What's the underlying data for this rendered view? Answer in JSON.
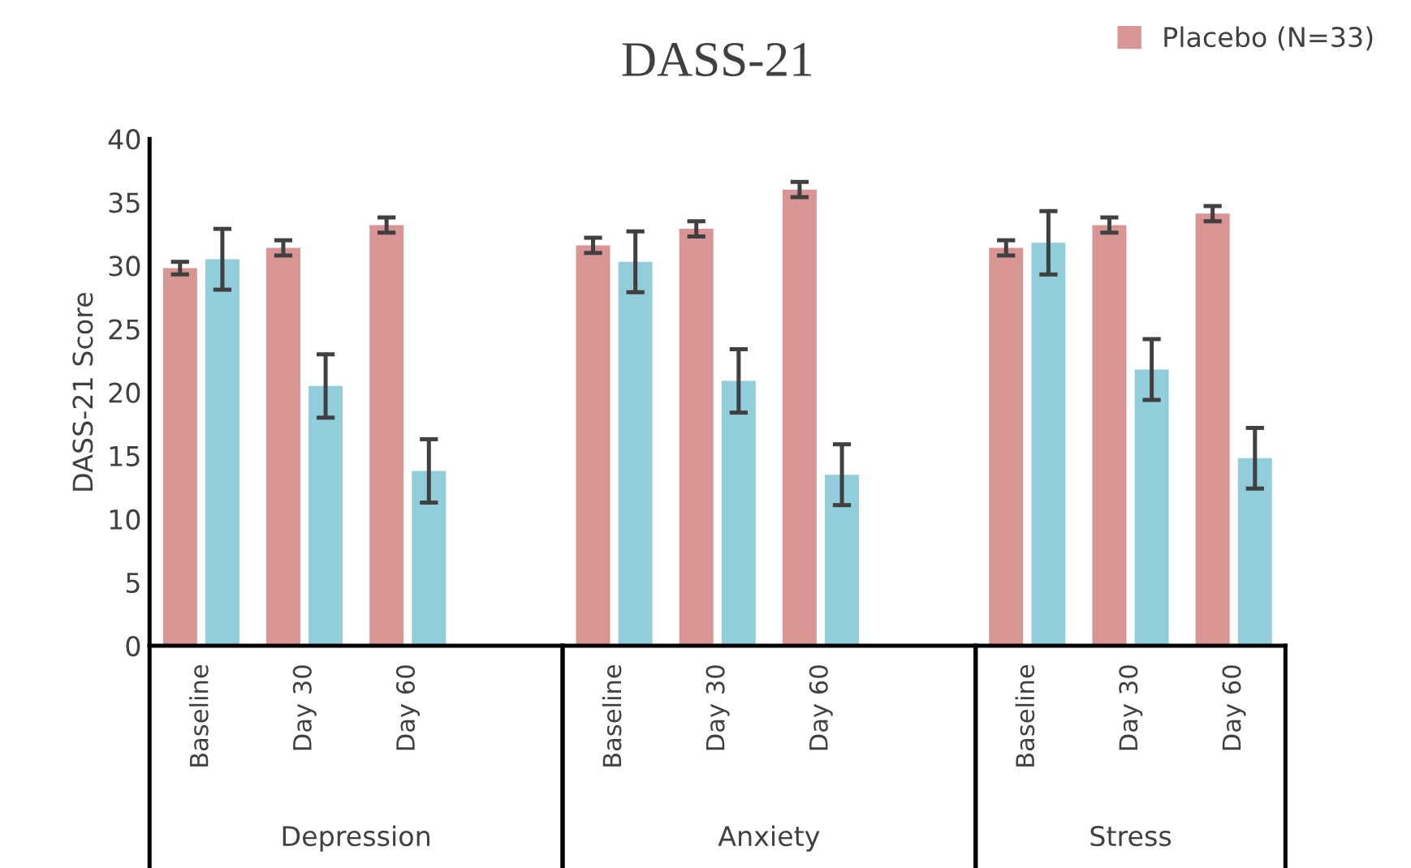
{
  "chart_data": {
    "type": "bar",
    "title": "DASS-21",
    "ylabel": "DASS-21 Score",
    "categories": [
      "Baseline",
      "Day 30",
      "Day 60",
      null,
      "Baseline",
      "Day 30",
      "Day 60",
      null,
      "Baseline",
      "Day 30",
      "Day 60"
    ],
    "series": [
      {
        "name": "Placebo (N=33)",
        "color": "#d99594",
        "values": [
          29.8,
          31.4,
          33.2,
          null,
          31.6,
          32.9,
          36.0,
          null,
          31.4,
          33.2,
          34.1
        ],
        "errors": [
          0.5,
          0.6,
          0.6,
          null,
          0.6,
          0.6,
          0.6,
          null,
          0.6,
          0.6,
          0.6
        ]
      },
      {
        "color": "#92cddc",
        "values": [
          30.5,
          20.5,
          13.8,
          null,
          30.3,
          20.9,
          13.5,
          null,
          31.8,
          21.8,
          14.8
        ],
        "errors": [
          2.4,
          2.5,
          2.5,
          null,
          2.4,
          2.5,
          2.4,
          null,
          2.5,
          2.4,
          2.4
        ]
      }
    ],
    "annotations": [
      "Depression",
      "Anxiety",
      "Stress"
    ],
    "ylim": [
      0,
      40
    ],
    "yticks": [
      0,
      5,
      10,
      15,
      20,
      25,
      30,
      35,
      40
    ],
    "grid": false,
    "legend": "top right"
  }
}
